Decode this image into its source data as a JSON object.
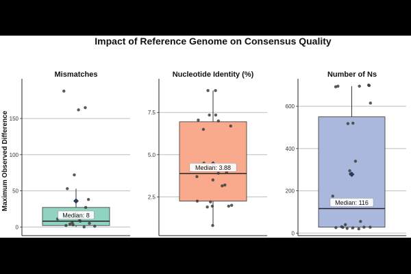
{
  "chart_data": {
    "type": "box",
    "title": "Impact of Reference Genome on Consensus Quality",
    "ylabel": "Maximum Observed Difference",
    "grid": "horizontal",
    "panels": [
      {
        "title": "Mismatches",
        "color": "#8fd3c0",
        "ylim": [
          -12,
          205
        ],
        "yticks": [
          "0",
          "50",
          "100",
          "150"
        ],
        "tick_values": [
          0,
          50,
          100,
          150
        ],
        "box": {
          "q1": 2,
          "median": 8,
          "q3": 27,
          "whisker_low": 0,
          "whisker_high": 53,
          "mean": 36
        },
        "median_label": "Median: 8",
        "points": [
          188,
          165,
          162,
          72,
          53,
          38,
          27,
          20,
          16,
          14,
          11,
          9,
          8,
          6,
          5,
          4,
          3,
          2,
          1,
          0
        ]
      },
      {
        "title": "Nucleotide Identity (%)",
        "color": "#f9a98c",
        "ylim": [
          0.2,
          9.5
        ],
        "yticks": [
          "2.5",
          "5.0",
          "7.5"
        ],
        "tick_values": [
          2.5,
          5.0,
          7.5
        ],
        "box": {
          "q1": 2.25,
          "median": 3.88,
          "q3": 6.95,
          "whisker_low": 0.8,
          "whisker_high": 8.8,
          "mean": 4.45
        },
        "median_label": "Median: 3.88",
        "points": [
          8.8,
          8.8,
          7.35,
          7.35,
          7.05,
          7.0,
          6.7,
          6.5,
          4.5,
          4.2,
          3.95,
          3.9,
          3.7,
          3.5,
          3.2,
          3.15,
          2.25,
          2.2,
          2.0,
          1.95,
          1.95,
          1.9,
          0.8
        ]
      },
      {
        "title": "Number of Ns",
        "color": "#aab8de",
        "ylim": [
          -12,
          730
        ],
        "yticks": [
          "0",
          "200",
          "400",
          "600"
        ],
        "tick_values": [
          0,
          200,
          400,
          600
        ],
        "box": {
          "q1": 28,
          "median": 116,
          "q3": 550,
          "whisker_low": 18,
          "whisker_high": 695,
          "mean": 278
        },
        "median_label": "Median: 116",
        "points": [
          700,
          698,
          695,
          695,
          692,
          615,
          520,
          518,
          340,
          295,
          280,
          175,
          55,
          40,
          30,
          28,
          28,
          27,
          26,
          25,
          22,
          20
        ]
      }
    ]
  }
}
